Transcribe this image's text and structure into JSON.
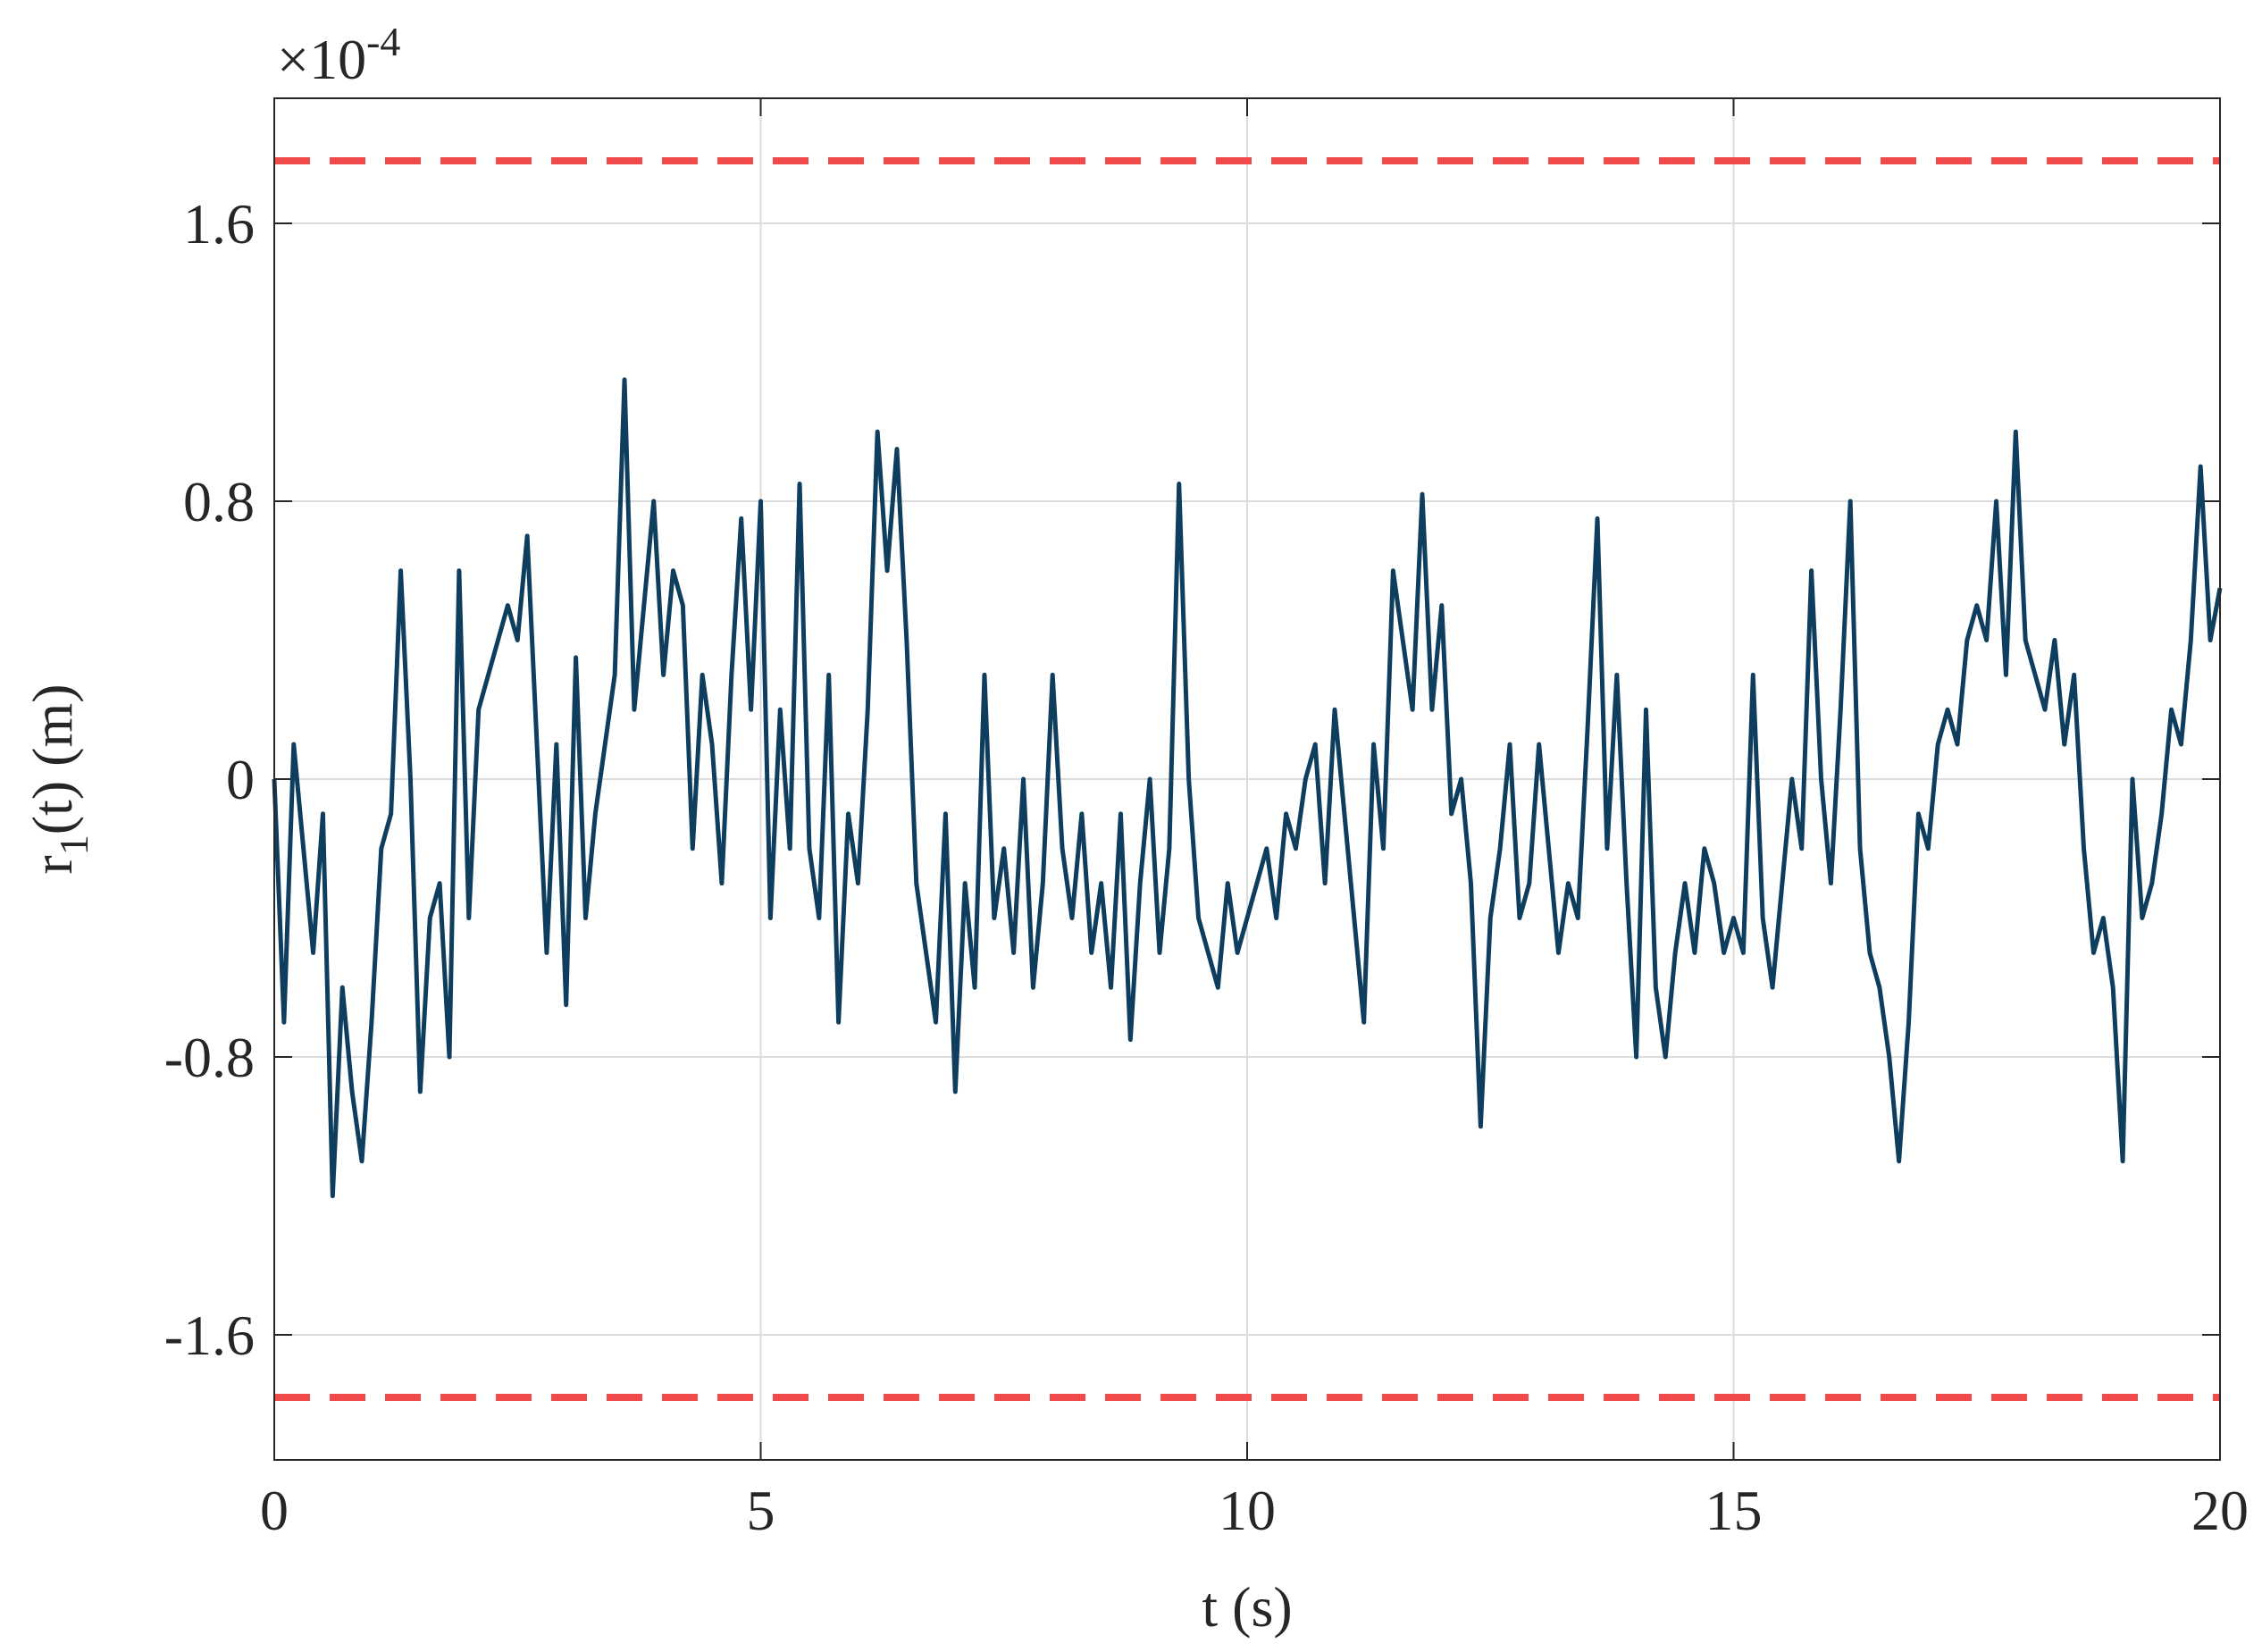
{
  "chart_data": {
    "type": "line",
    "xlabel": "t (s)",
    "ylabel": {
      "main": "r",
      "sub": "1",
      "rest": "(t) (m)"
    },
    "multiplier": {
      "base": "×10",
      "exponent": "-4"
    },
    "xlim": [
      0,
      20
    ],
    "xticks": [
      0,
      5,
      10,
      15,
      20
    ],
    "ylim": [
      -1.96,
      1.96
    ],
    "yticks": [
      -1.6,
      -0.8,
      0,
      0.8,
      1.6
    ],
    "grid": true,
    "color": "#0e3d5e",
    "hlines": [
      {
        "value": 1.78,
        "color": "#f04a4a"
      },
      {
        "value": -1.78,
        "color": "#f04a4a"
      }
    ],
    "x": [
      0,
      0.1,
      0.2,
      0.3,
      0.4,
      0.5,
      0.6,
      0.7,
      0.8,
      0.9,
      1,
      1.1,
      1.2,
      1.3,
      1.4,
      1.5,
      1.6,
      1.7,
      1.8,
      1.9,
      2,
      2.1,
      2.2,
      2.3,
      2.4,
      2.5,
      2.6,
      2.7,
      2.8,
      2.9,
      3,
      3.1,
      3.2,
      3.3,
      3.4,
      3.5,
      3.6,
      3.7,
      3.8,
      3.9,
      4,
      4.1,
      4.2,
      4.3,
      4.4,
      4.5,
      4.6,
      4.7,
      4.8,
      4.9,
      5,
      5.1,
      5.2,
      5.3,
      5.4,
      5.5,
      5.6,
      5.7,
      5.8,
      5.9,
      6,
      6.1,
      6.2,
      6.3,
      6.4,
      6.5,
      6.6,
      6.7,
      6.8,
      6.9,
      7,
      7.1,
      7.2,
      7.3,
      7.4,
      7.5,
      7.6,
      7.7,
      7.8,
      7.9,
      8,
      8.1,
      8.2,
      8.3,
      8.4,
      8.5,
      8.6,
      8.7,
      8.8,
      8.9,
      9,
      9.1,
      9.2,
      9.3,
      9.4,
      9.5,
      9.6,
      9.7,
      9.8,
      9.9,
      10,
      10.1,
      10.2,
      10.3,
      10.4,
      10.5,
      10.6,
      10.7,
      10.8,
      10.9,
      11,
      11.1,
      11.2,
      11.3,
      11.4,
      11.5,
      11.6,
      11.7,
      11.8,
      11.9,
      12,
      12.1,
      12.2,
      12.3,
      12.4,
      12.5,
      12.6,
      12.7,
      12.8,
      12.9,
      13,
      13.1,
      13.2,
      13.3,
      13.4,
      13.5,
      13.6,
      13.7,
      13.8,
      13.9,
      14,
      14.1,
      14.2,
      14.3,
      14.4,
      14.5,
      14.6,
      14.7,
      14.8,
      14.9,
      15,
      15.1,
      15.2,
      15.3,
      15.4,
      15.5,
      15.6,
      15.7,
      15.8,
      15.9,
      16,
      16.1,
      16.2,
      16.3,
      16.4,
      16.5,
      16.6,
      16.7,
      16.8,
      16.9,
      17,
      17.1,
      17.2,
      17.3,
      17.4,
      17.5,
      17.6,
      17.7,
      17.8,
      17.9,
      18,
      18.1,
      18.2,
      18.3,
      18.4,
      18.5,
      18.6,
      18.7,
      18.8,
      18.9,
      19,
      19.1,
      19.2,
      19.3,
      19.4,
      19.5,
      19.6,
      19.7,
      19.8,
      19.9,
      20
    ],
    "values": [
      0,
      -0.7,
      0.1,
      -0.2,
      -0.5,
      -0.1,
      -1.2,
      -0.6,
      -0.9,
      -1.1,
      -0.7,
      -0.2,
      -0.1,
      0.6,
      0,
      -0.9,
      -0.4,
      -0.3,
      -0.8,
      0.6,
      -0.4,
      0.2,
      0.3,
      0.4,
      0.5,
      0.4,
      0.7,
      0.1,
      -0.5,
      0.1,
      -0.65,
      0.35,
      -0.4,
      -0.1,
      0.1,
      0.3,
      1.15,
      0.2,
      0.5,
      0.8,
      0.3,
      0.6,
      0.5,
      -0.2,
      0.3,
      0.1,
      -0.3,
      0.3,
      0.75,
      0.2,
      0.8,
      -0.4,
      0.2,
      -0.2,
      0.85,
      -0.2,
      -0.4,
      0.3,
      -0.7,
      -0.1,
      -0.3,
      0.2,
      1,
      0.6,
      0.95,
      0.4,
      -0.3,
      -0.5,
      -0.7,
      -0.1,
      -0.9,
      -0.3,
      -0.6,
      0.3,
      -0.4,
      -0.2,
      -0.5,
      0,
      -0.6,
      -0.3,
      0.3,
      -0.2,
      -0.4,
      -0.1,
      -0.5,
      -0.3,
      -0.6,
      -0.1,
      -0.75,
      -0.3,
      0,
      -0.5,
      -0.2,
      0.85,
      0,
      -0.4,
      -0.5,
      -0.6,
      -0.3,
      -0.5,
      -0.4,
      -0.3,
      -0.2,
      -0.4,
      -0.1,
      -0.2,
      0,
      0.1,
      -0.3,
      0.2,
      -0.1,
      -0.4,
      -0.7,
      0.1,
      -0.2,
      0.6,
      0.4,
      0.2,
      0.82,
      0.2,
      0.5,
      -0.1,
      0,
      -0.3,
      -1,
      -0.4,
      -0.2,
      0.1,
      -0.4,
      -0.3,
      0.1,
      -0.2,
      -0.5,
      -0.3,
      -0.4,
      0.15,
      0.75,
      -0.2,
      0.3,
      -0.3,
      -0.8,
      0.2,
      -0.6,
      -0.8,
      -0.5,
      -0.3,
      -0.5,
      -0.2,
      -0.3,
      -0.5,
      -0.4,
      -0.5,
      0.3,
      -0.4,
      -0.6,
      -0.3,
      0,
      -0.2,
      0.6,
      0,
      -0.3,
      0.2,
      0.8,
      -0.2,
      -0.5,
      -0.6,
      -0.8,
      -1.1,
      -0.7,
      -0.1,
      -0.2,
      0.1,
      0.2,
      0.1,
      0.4,
      0.5,
      0.4,
      0.8,
      0.3,
      1,
      0.4,
      0.3,
      0.2,
      0.4,
      0.1,
      0.3,
      -0.2,
      -0.5,
      -0.4,
      -0.6,
      -1.1,
      0,
      -0.4,
      -0.3,
      -0.1,
      0.2,
      0.1,
      0.4,
      0.9,
      0.4,
      0.55
    ]
  }
}
